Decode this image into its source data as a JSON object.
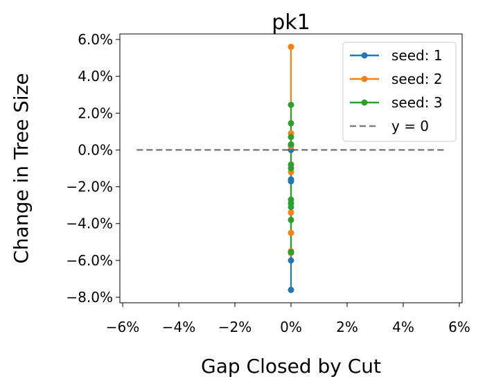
{
  "chart_data": {
    "type": "line",
    "title": "pk1",
    "xlabel": "Gap Closed by Cut",
    "ylabel": "Change in Tree Size",
    "xlim": [
      -6.1,
      6.1
    ],
    "ylim": [
      -8.3,
      6.3
    ],
    "x_ticks": [
      -6,
      -4,
      -2,
      0,
      2,
      4,
      6
    ],
    "x_tick_labels": [
      "−6%",
      "−4%",
      "−2%",
      "0%",
      "2%",
      "4%",
      "6%"
    ],
    "y_ticks": [
      6,
      4,
      2,
      0,
      -2,
      -4,
      -6,
      -8
    ],
    "y_tick_labels": [
      "6.0%",
      "4.0%",
      "2.0%",
      "0.0%",
      "−2.0%",
      "−4.0%",
      "−6.0%",
      "−8.0%"
    ],
    "grid": false,
    "legend_position": "top-right",
    "series": [
      {
        "name": "seed: 1",
        "color": "#1f77b4",
        "x": [
          0,
          0,
          0,
          0,
          0,
          0,
          0
        ],
        "y": [
          0.3,
          0.0,
          -1.6,
          -1.7,
          -5.6,
          -6.0,
          -7.6
        ]
      },
      {
        "name": "seed: 2",
        "color": "#ff7f0e",
        "x": [
          0,
          0,
          0,
          0,
          0,
          0,
          0,
          0
        ],
        "y": [
          5.6,
          0.9,
          0.2,
          -1.2,
          -3.4,
          -4.5,
          -5.5,
          -5.6
        ]
      },
      {
        "name": "seed: 3",
        "color": "#2ca02c",
        "x": [
          0,
          0,
          0,
          0,
          0,
          0,
          0,
          0,
          0,
          0,
          0
        ],
        "y": [
          2.45,
          1.45,
          0.7,
          0.3,
          -0.8,
          -1.0,
          -2.7,
          -2.9,
          -3.1,
          -3.8,
          -5.55
        ]
      }
    ],
    "reference_line": {
      "name": "y = 0",
      "y": 0,
      "x_range": [
        -5.5,
        5.5
      ],
      "color": "#7f7f7f",
      "style": "dashed"
    }
  }
}
